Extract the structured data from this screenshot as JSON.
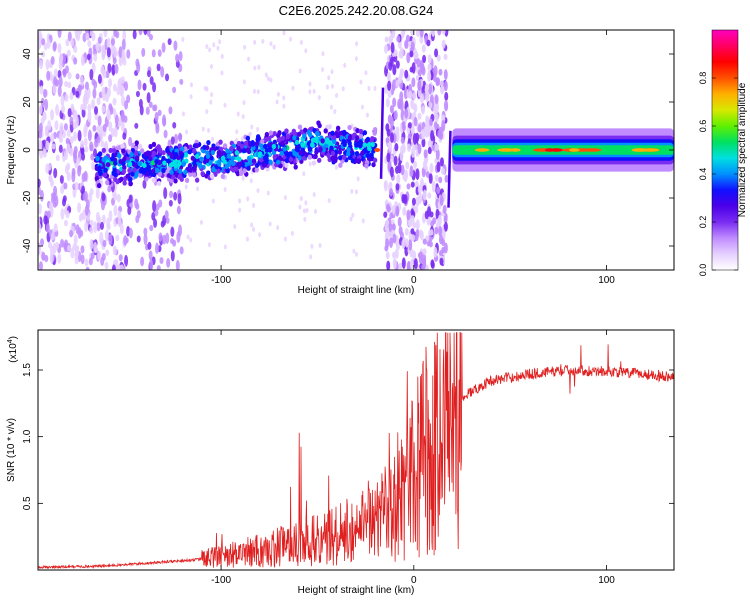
{
  "title": "C2E6.2025.242.20.08.G24",
  "chart_data": [
    {
      "type": "heatmap",
      "panel": "top",
      "xlabel": "Height of straight line (km)",
      "ylabel": "Frequency (Hz)",
      "xlim": [
        -195,
        135
      ],
      "ylim": [
        -50,
        50
      ],
      "xticks": [
        -100,
        0,
        100
      ],
      "yticks": [
        -40,
        -20,
        0,
        20,
        40
      ],
      "colorbar": {
        "label": "Normalized spectral amplitude",
        "range": [
          0,
          1
        ],
        "ticks": [
          "0.0",
          "0.2",
          "0.4",
          "0.6",
          "0.8"
        ],
        "colors": [
          "#ffffff",
          "#e6d0ff",
          "#c08cff",
          "#7a2cf2",
          "#4b00e8",
          "#1010ff",
          "#0090ff",
          "#00e0e0",
          "#00e060",
          "#60f000",
          "#d8e800",
          "#ffb000",
          "#ff5000",
          "#ff0000",
          "#ff0060",
          "#ff00c0"
        ]
      },
      "trace": {
        "x": [
          -195,
          -150,
          -100,
          -50,
          -20,
          20,
          50,
          100,
          135
        ],
        "frequency": [
          -8,
          -6,
          -4,
          3,
          0,
          0,
          0,
          0,
          0
        ]
      }
    },
    {
      "type": "line",
      "panel": "bottom",
      "xlabel": "Height of straight line (km)",
      "ylabel": "SNR (10 * v/v)",
      "scale_label": "(x10",
      "scale_exponent": "4",
      "xlim": [
        -195,
        135
      ],
      "ylim": [
        0,
        1.8
      ],
      "xticks": [
        -100,
        0,
        100
      ],
      "yticks": [
        "0.5",
        "1.0",
        "1.5"
      ],
      "color": "#e02020",
      "envelope": {
        "x": [
          -195,
          -160,
          -130,
          -110,
          -90,
          -70,
          -50,
          -35,
          -25,
          -15,
          -5,
          5,
          15,
          25,
          40,
          60,
          80,
          100,
          120,
          135
        ],
        "y": [
          0.02,
          0.03,
          0.06,
          0.08,
          0.12,
          0.18,
          0.22,
          0.28,
          0.35,
          0.45,
          0.6,
          0.85,
          1.1,
          1.3,
          1.42,
          1.47,
          1.5,
          1.49,
          1.47,
          1.45
        ]
      }
    }
  ]
}
